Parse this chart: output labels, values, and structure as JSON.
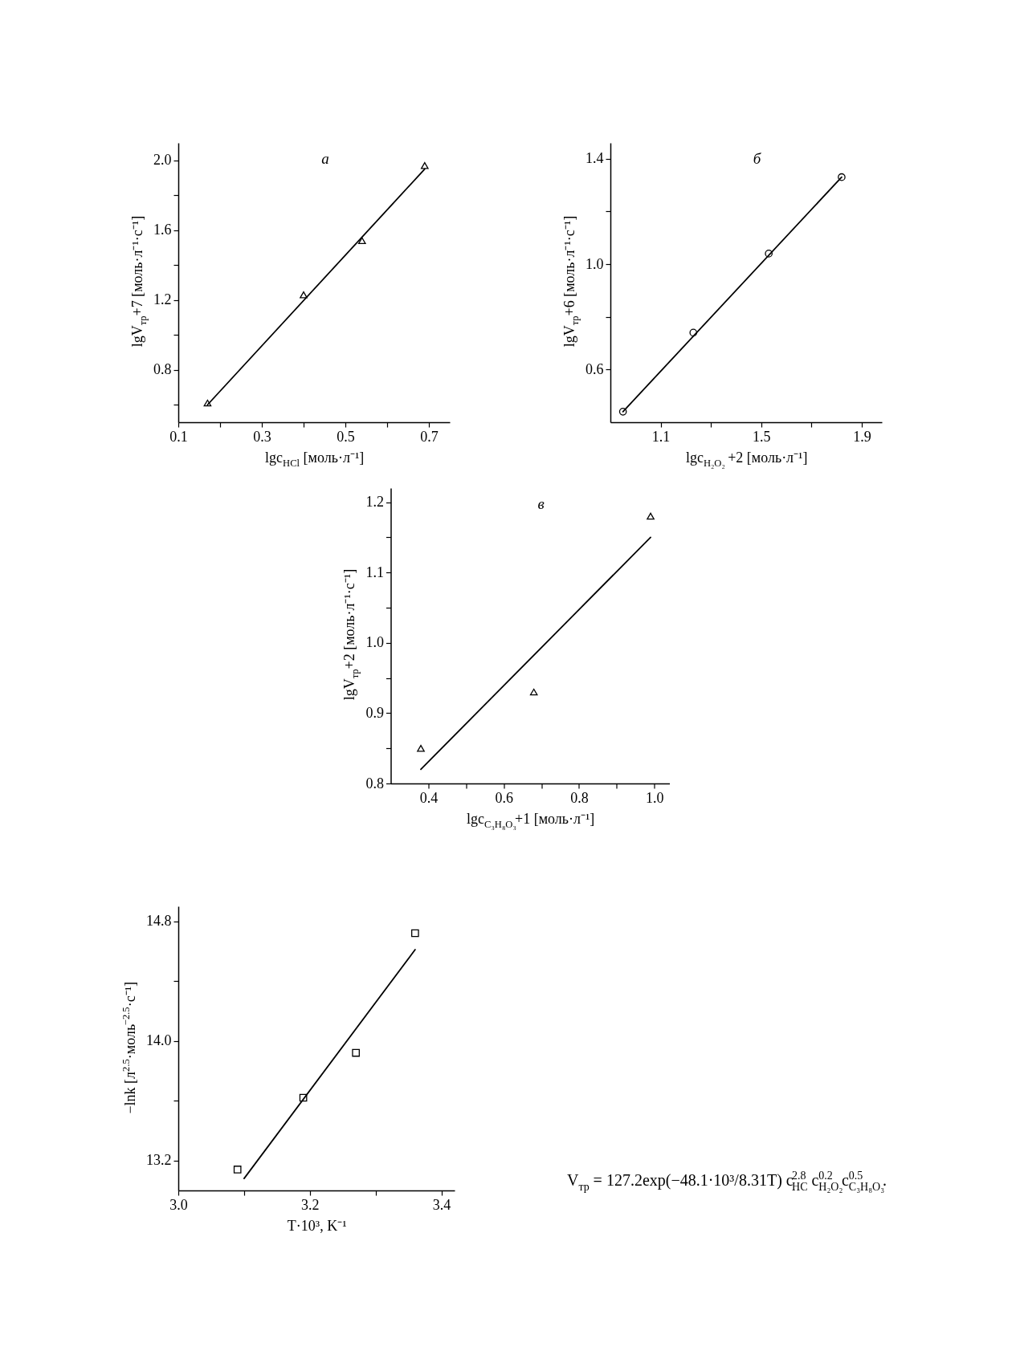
{
  "chart_data": [
    {
      "type": "scatter",
      "annotations": [
        "а"
      ],
      "xlabel": "lgc$_{HCl}$ [моль·л⁻¹]",
      "ylabel": "lgV$_{тр}$+7 [моль·л⁻¹·с⁻¹]",
      "xlim": [
        0.1,
        0.75
      ],
      "xticks": [
        0.1,
        {
          "value": 0.2,
          "label": null
        },
        0.3,
        {
          "value": 0.4,
          "label": null
        },
        0.5,
        {
          "value": 0.6,
          "label": null
        },
        0.7
      ],
      "ylim": [
        0.5,
        2.1
      ],
      "yticks": [
        {
          "value": 0.6,
          "label": null
        },
        0.8,
        {
          "value": 1,
          "label": null
        },
        1.2,
        {
          "value": 1.4,
          "label": null
        },
        1.6,
        {
          "value": 1.8,
          "label": null
        },
        {
          "value": 2,
          "label": "2.0"
        }
      ],
      "series": [
        {
          "type": "scatter",
          "marker": "triangle",
          "color": "#000000",
          "x": [
            0.17,
            0.4,
            0.54,
            0.69
          ],
          "values": [
            0.61,
            1.23,
            1.54,
            1.97
          ]
        },
        {
          "type": "line",
          "color": "#000000",
          "x": [
            0.17,
            0.69
          ],
          "values": [
            0.6,
            1.95
          ]
        }
      ]
    },
    {
      "type": "scatter",
      "annotations": [
        "б"
      ],
      "xlabel": "lgc$_{H₂O₂}$ +2 [моль·л⁻¹]",
      "ylabel": "lgV$_{тр}$+6 [моль·л⁻¹·с⁻¹]",
      "xlim": [
        0.9,
        1.98
      ],
      "xticks": [
        1.1,
        {
          "value": 1.3,
          "label": null
        },
        1.5,
        {
          "value": 1.7,
          "label": null
        },
        1.9
      ],
      "ylim": [
        0.4,
        1.46
      ],
      "yticks": [
        0.6,
        {
          "value": 0.8,
          "label": null
        },
        {
          "value": 1,
          "label": "1.0"
        },
        {
          "value": 1.2,
          "label": null
        },
        1.4
      ],
      "series": [
        {
          "type": "scatter",
          "marker": "circle",
          "color": "#000000",
          "x": [
            0.95,
            1.23,
            1.53,
            1.82
          ],
          "values": [
            0.44,
            0.74,
            1.04,
            1.33
          ]
        },
        {
          "type": "line",
          "color": "#000000",
          "x": [
            0.95,
            1.82
          ],
          "values": [
            0.44,
            1.33
          ]
        }
      ]
    },
    {
      "type": "scatter",
      "annotations": [
        "в"
      ],
      "xlabel": "lgc$_{C₃H₈O₃}$+1 [моль·л⁻¹]",
      "ylabel": "lgV$_{тр}$+2 [моль·л⁻¹·с⁻¹]",
      "xlim": [
        0.3,
        1.04
      ],
      "xticks": [
        0.4,
        {
          "value": 0.5,
          "label": null
        },
        0.6,
        {
          "value": 0.7,
          "label": null
        },
        0.8,
        {
          "value": 0.9,
          "label": null
        },
        {
          "value": 1,
          "label": "1.0"
        }
      ],
      "ylim": [
        0.8,
        1.22
      ],
      "yticks": [
        0.8,
        {
          "value": 0.85,
          "label": null
        },
        0.9,
        {
          "value": 0.95,
          "label": null
        },
        {
          "value": 1,
          "label": "1.0"
        },
        {
          "value": 1.05,
          "label": null
        },
        1.1,
        {
          "value": 1.15,
          "label": null
        },
        1.2
      ],
      "series": [
        {
          "type": "scatter",
          "marker": "triangle",
          "color": "#000000",
          "x": [
            0.38,
            0.68,
            0.99
          ],
          "values": [
            0.85,
            0.93,
            1.18
          ]
        },
        {
          "type": "line",
          "color": "#000000",
          "x": [
            0.38,
            0.99
          ],
          "values": [
            0.82,
            1.15
          ]
        }
      ]
    },
    {
      "type": "scatter",
      "xlabel": "T·10³, K⁻¹",
      "ylabel": "−lnk [л$^{2.5}$·моль$^{−2.5}$·с⁻¹]",
      "xlim": [
        3,
        3.42
      ],
      "xticks": [
        {
          "value": 3,
          "label": "3.0"
        },
        {
          "value": 3.1,
          "label": null
        },
        3.2,
        {
          "value": 3.3,
          "label": null
        },
        3.4
      ],
      "ylim": [
        13,
        14.9
      ],
      "yticks": [
        13.2,
        {
          "value": 13.6,
          "label": null
        },
        {
          "value": 14,
          "label": "14.0"
        },
        {
          "value": 14.4,
          "label": null
        },
        14.8
      ],
      "series": [
        {
          "type": "scatter",
          "marker": "square",
          "color": "#000000",
          "x": [
            3.09,
            3.19,
            3.27,
            3.36
          ],
          "values": [
            13.14,
            13.62,
            13.92,
            14.72
          ]
        },
        {
          "type": "line",
          "color": "#000000",
          "x": [
            3.1,
            3.36
          ],
          "values": [
            13.08,
            14.61
          ]
        }
      ]
    },
    {
      "type": "other",
      "annotations": [
        "V$_{тр}$ = 127.2exp(−48.1·10³/8.31T) c$_{HC}$$^{2.8}$ c$_{H₂O₂}$$^{0.2}$c$_{C₃H₈O₃}$$^{0.5}$."
      ]
    }
  ]
}
